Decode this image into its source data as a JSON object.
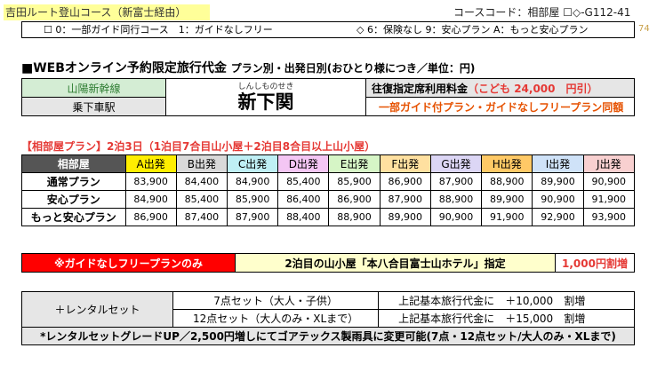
{
  "header": {
    "title": "吉田ルート登山コース（新富士経由）",
    "course_code": "コースコード：相部屋 ☐◇-G112-41"
  },
  "options": {
    "guide": "☐ 0：一部ガイド同行コース　1：ガイドなしフリー",
    "insurance": "◇ 6：保険なし 9：安心プラン A：もっと安心プラン"
  },
  "page_number": "74",
  "section": {
    "title": "■WEBオンライン予約限定旅行代金",
    "subtitle": "プラン別・出発日別(おひとり様につき／単位：円)"
  },
  "station": {
    "line_label": "山陽新幹線",
    "boarding_label": "乗下車駅",
    "name_ruby": "しんしものせき",
    "name": "新下関",
    "fare_prefix": "往復指定席利用料金",
    "fare_child": "（こども 24,000　円引）",
    "note": "一部ガイド付プラン・ガイドなしフリープラン同額"
  },
  "plan_heading": "【相部屋プラン】2泊3日（1泊目7合目山小屋＋2泊目8合目以上山小屋）",
  "fare_table": {
    "corner_label": "相部屋",
    "departures": [
      {
        "label": "A出発",
        "color": "#ffee00"
      },
      {
        "label": "B出発",
        "color": "#d9d9d9"
      },
      {
        "label": "C出発",
        "color": "#bfeff5"
      },
      {
        "label": "D出発",
        "color": "#f4c6f4"
      },
      {
        "label": "E出発",
        "color": "#d6f5c6"
      },
      {
        "label": "F出発",
        "color": "#ffe0a0"
      },
      {
        "label": "G出発",
        "color": "#dcd6f5"
      },
      {
        "label": "H出発",
        "color": "#ffc966"
      },
      {
        "label": "I出発",
        "color": "#cfe2f8"
      },
      {
        "label": "J出発",
        "color": "#f8d0d0"
      }
    ],
    "rows": [
      {
        "plan": "通常プラン",
        "prices": [
          "83,900",
          "84,400",
          "84,900",
          "85,400",
          "85,900",
          "86,900",
          "87,900",
          "88,900",
          "89,900",
          "90,900"
        ]
      },
      {
        "plan": "安心プラン",
        "prices": [
          "84,900",
          "85,400",
          "85,900",
          "86,400",
          "86,900",
          "87,900",
          "88,900",
          "89,900",
          "90,900",
          "91,900"
        ]
      },
      {
        "plan": "もっと安心プラン",
        "prices": [
          "86,900",
          "87,400",
          "87,900",
          "88,400",
          "88,900",
          "89,900",
          "90,900",
          "91,900",
          "92,900",
          "93,900"
        ]
      }
    ]
  },
  "guide_free": {
    "label": "※ガイドなしフリープランのみ",
    "hotel": "2泊目の山小屋「本八合目富士山ホテル」指定",
    "surcharge": "1,000円割増"
  },
  "rental": {
    "label": "＋レンタルセット",
    "sets": [
      {
        "name": "7点セット（大人・子供）",
        "prefix": "上記基本旅行代金に",
        "amount": "＋10,000　割増"
      },
      {
        "name": "12点セット（大人のみ・XLまで）",
        "prefix": "上記基本旅行代金に",
        "amount": "＋15,000　割増"
      }
    ],
    "note": "*レンタルセットグレードUP／2,500円増しにてゴアテックス製雨具に変更可能(7点・12点セット/大人のみ・XLまで)"
  }
}
